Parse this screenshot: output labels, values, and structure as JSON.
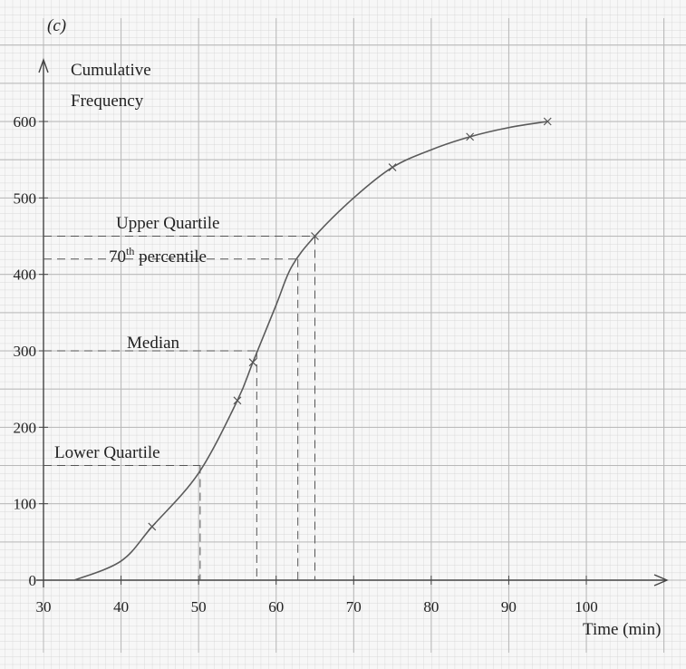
{
  "figure_label": "(c)",
  "chart_data": {
    "type": "line",
    "title": "",
    "xlabel": "Time (min)",
    "ylabel_line1": "Cumulative",
    "ylabel_line2": "Frequency",
    "xlim": [
      30,
      100
    ],
    "ylim": [
      0,
      600
    ],
    "xticks": [
      30,
      40,
      50,
      60,
      70,
      80,
      90,
      100
    ],
    "yticks": [
      0,
      100,
      200,
      300,
      400,
      500,
      600
    ],
    "grid": true,
    "series": [
      {
        "x": [
          34,
          40,
          44,
          50,
          55,
          57,
          60,
          62,
          65,
          70,
          75,
          80,
          85,
          90,
          95
        ],
        "y": [
          0,
          25,
          70,
          140,
          235,
          285,
          360,
          410,
          450,
          500,
          540,
          563,
          580,
          592,
          600
        ],
        "marked_points": [
          [
            44,
            70
          ],
          [
            55,
            235
          ],
          [
            57,
            285
          ],
          [
            65,
            450
          ],
          [
            75,
            540
          ],
          [
            85,
            580
          ],
          [
            95,
            600
          ]
        ]
      }
    ],
    "annotations": [
      {
        "label": "Upper Quartile",
        "y": 450,
        "x": 65
      },
      {
        "label_main": "70",
        "label_sup": "th",
        "label_rest": " percentile",
        "y": 420,
        "x": 62.8
      },
      {
        "label": "Median",
        "y": 300,
        "x": 57.5
      },
      {
        "label": "Lower Quartile",
        "y": 150,
        "x": 50.2
      }
    ]
  }
}
